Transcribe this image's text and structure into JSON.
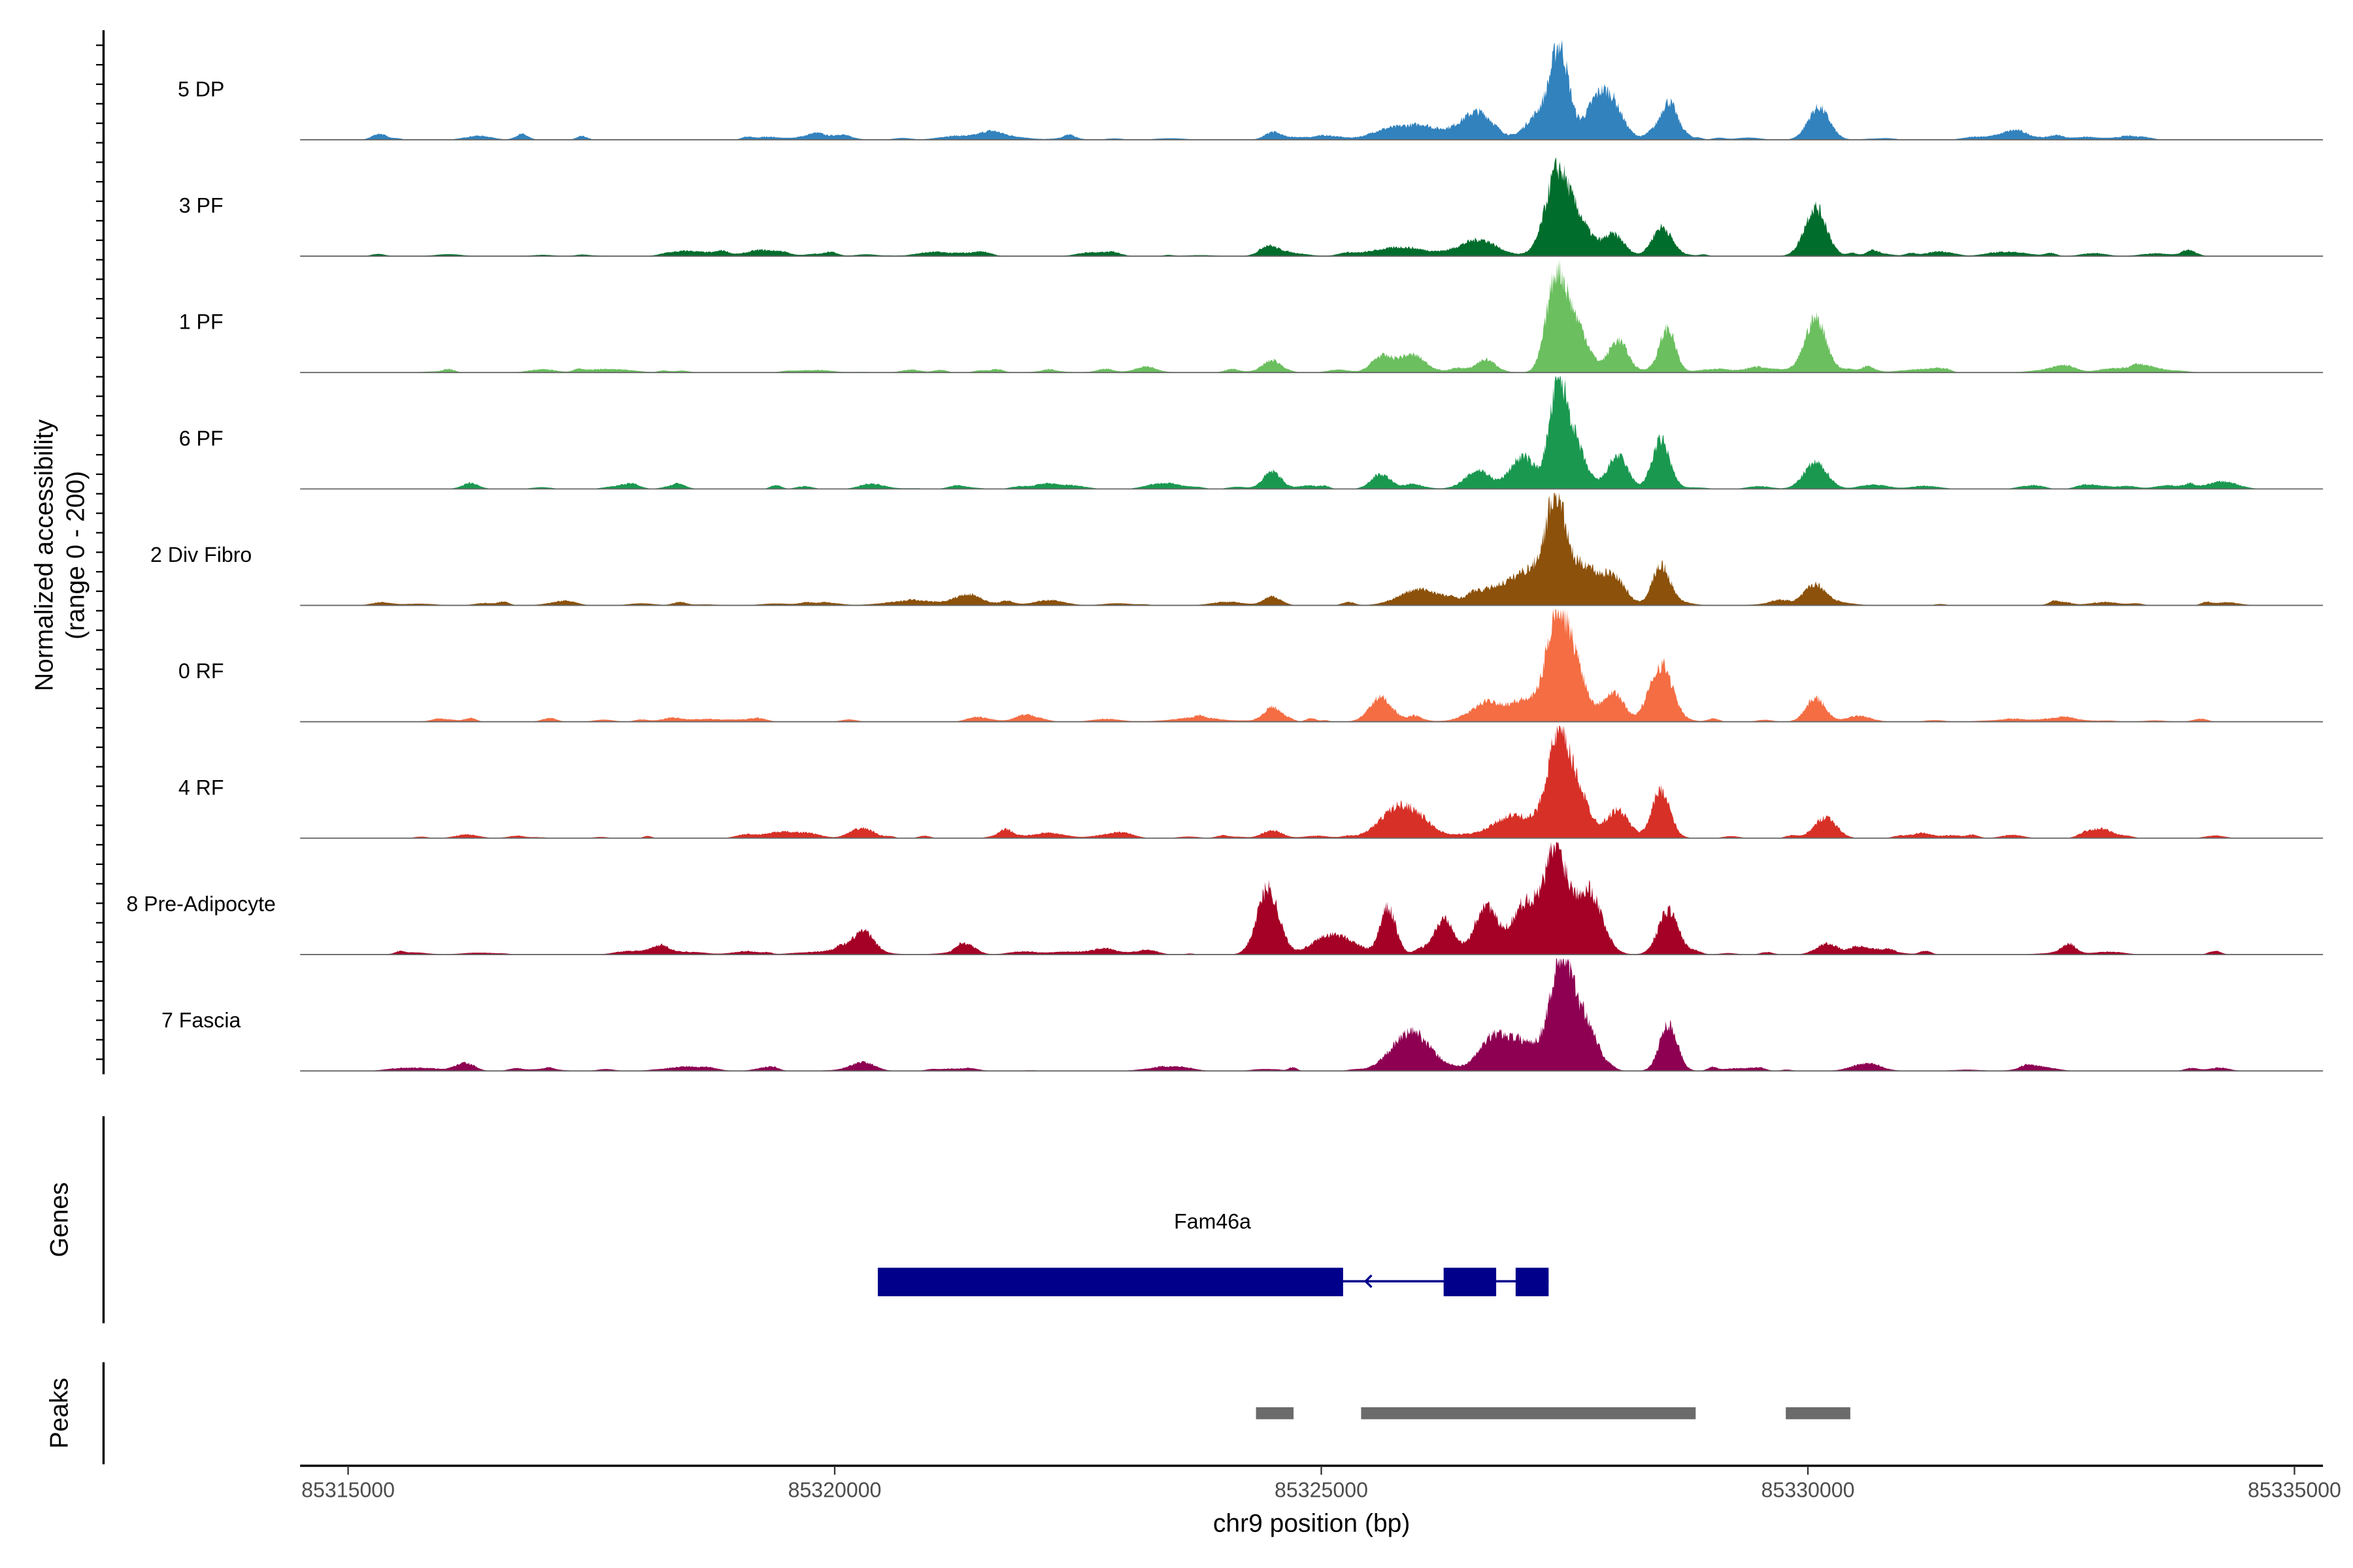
{
  "chart_data": {
    "type": "area",
    "title": "",
    "xlabel": "chr9 position (bp)",
    "ylabel": "Normalized accessibility",
    "ylabel_sub": "(range 0 - 200)",
    "ylim": [
      0,
      200
    ],
    "xlim": [
      85314507,
      85335293
    ],
    "x_ticks": [
      85315000,
      85320000,
      85325000,
      85330000,
      85335000
    ],
    "x_tick_labels": [
      "85315000",
      "85320000",
      "85325000",
      "85330000",
      "85335000"
    ],
    "tracks": [
      {
        "name": "5 DP",
        "color": "#3182bd",
        "peaks": [
          [
            85327460,
            136,
            90
          ],
          [
            85327300,
            48,
            150
          ],
          [
            85327830,
            67,
            120
          ],
          [
            85328000,
            53,
            110
          ],
          [
            85328570,
            69,
            90
          ],
          [
            85330112,
            59,
            110
          ],
          [
            85326611,
            48,
            160
          ],
          [
            85324499,
            13,
            80
          ],
          [
            85325900,
            20,
            300
          ]
        ]
      },
      {
        "name": "3 PF",
        "color": "#006d2c",
        "peaks": [
          [
            85327413,
            141,
            110
          ],
          [
            85327630,
            67,
            120
          ],
          [
            85328000,
            40,
            110
          ],
          [
            85328500,
            53,
            100
          ],
          [
            85330080,
            88,
            110
          ],
          [
            85326611,
            27,
            200
          ],
          [
            85324499,
            13,
            120
          ],
          [
            85325800,
            15,
            300
          ]
        ]
      },
      {
        "name": "1 PF",
        "color": "#6bbf5f",
        "peaks": [
          [
            85327413,
            168,
            100
          ],
          [
            85327620,
            80,
            120
          ],
          [
            85328050,
            59,
            100
          ],
          [
            85328560,
            80,
            80
          ],
          [
            85330080,
            99,
            110
          ],
          [
            85325917,
            32,
            150
          ],
          [
            85325609,
            27,
            100
          ],
          [
            85324499,
            19,
            90
          ],
          [
            85326688,
            21,
            100
          ]
        ]
      },
      {
        "name": "6 PF",
        "color": "#1a9850",
        "peaks": [
          [
            85327430,
            168,
            90
          ],
          [
            85327600,
            80,
            110
          ],
          [
            85328050,
            59,
            100
          ],
          [
            85328490,
            88,
            90
          ],
          [
            85330080,
            48,
            120
          ],
          [
            85324499,
            32,
            90
          ],
          [
            85325609,
            27,
            100
          ],
          [
            85326611,
            32,
            120
          ],
          [
            85327074,
            53,
            130
          ]
        ]
      },
      {
        "name": "2 Div Fibro",
        "color": "#8c510a",
        "peaks": [
          [
            85327413,
            176,
            100
          ],
          [
            85327700,
            67,
            130
          ],
          [
            85328000,
            53,
            120
          ],
          [
            85328490,
            69,
            90
          ],
          [
            85330080,
            32,
            110
          ],
          [
            85324499,
            16,
            90
          ],
          [
            85325990,
            27,
            200
          ],
          [
            85326688,
            21,
            120
          ],
          [
            85327150,
            60,
            200
          ]
        ]
      },
      {
        "name": "0 RF",
        "color": "#f46d43",
        "peaks": [
          [
            85327413,
            160,
            100
          ],
          [
            85327600,
            107,
            110
          ],
          [
            85328000,
            53,
            110
          ],
          [
            85328490,
            99,
            110
          ],
          [
            85330080,
            43,
            100
          ],
          [
            85324499,
            27,
            90
          ],
          [
            85325609,
            40,
            110
          ],
          [
            85326688,
            32,
            130
          ],
          [
            85327100,
            40,
            200
          ]
        ]
      },
      {
        "name": "4 RF",
        "color": "#d73027",
        "peaks": [
          [
            85327413,
            147,
            110
          ],
          [
            85327600,
            93,
            130
          ],
          [
            85328050,
            48,
            110
          ],
          [
            85328490,
            85,
            90
          ],
          [
            85330190,
            27,
            100
          ],
          [
            85325840,
            59,
            200
          ],
          [
            85320289,
            16,
            120
          ],
          [
            85324499,
            13,
            100
          ],
          [
            85327000,
            40,
            200
          ]
        ]
      },
      {
        "name": "8 Pre-Adipocyte",
        "color": "#a50026",
        "peaks": [
          [
            85327413,
            181,
            110
          ],
          [
            85327740,
            120,
            140
          ],
          [
            85324453,
            120,
            110
          ],
          [
            85325686,
            85,
            80
          ],
          [
            85326688,
            88,
            110
          ],
          [
            85328570,
            80,
            100
          ],
          [
            85326270,
            59,
            100
          ],
          [
            85320289,
            43,
            110
          ],
          [
            85330190,
            19,
            110
          ],
          [
            85332660,
            13,
            80
          ],
          [
            85321370,
            16,
            90
          ],
          [
            85327100,
            90,
            150
          ],
          [
            85325100,
            30,
            200
          ]
        ]
      },
      {
        "name": "7 Fascia",
        "color": "#8e0152",
        "peaks": [
          [
            85327460,
            181,
            110
          ],
          [
            85327700,
            93,
            130
          ],
          [
            85328570,
            85,
            90
          ],
          [
            85325917,
            67,
            200
          ],
          [
            85326766,
            53,
            150
          ],
          [
            85320289,
            16,
            120
          ],
          [
            85327100,
            50,
            200
          ]
        ]
      }
    ],
    "genes": {
      "label": "Genes",
      "name": "Fam46a",
      "color": "#00008b",
      "strand": "-",
      "exons": [
        [
          85320443,
          85325224
        ],
        [
          85326257,
          85326797
        ],
        [
          85326997,
          85327336
        ]
      ],
      "span": [
        85320443,
        85327336
      ]
    },
    "peaks_track": {
      "label": "Peaks",
      "color": "#6b6b6b",
      "regions": [
        [
          85324329,
          85324715
        ],
        [
          85325409,
          85328847
        ],
        [
          85329773,
          85330436
        ]
      ]
    }
  }
}
